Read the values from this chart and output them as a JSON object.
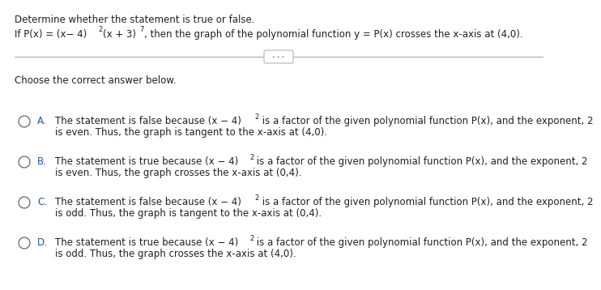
{
  "title_line1": "Determine whether the statement is true or false.",
  "formula_prefix": "If P(x) = (x− 4)",
  "formula_exp1": "2",
  "formula_mid": "(x + 3)",
  "formula_exp2": "7",
  "formula_suffix": ", then the graph of the polynomial function y = P(x) crosses the x-axis at (4,0).",
  "choose_text": "Choose the correct answer below.",
  "options": [
    {
      "letter": "A.",
      "line1_prefix": "The statement is false because (x − 4)",
      "line1_exp": "2",
      "line1_suffix": " is a factor of the given polynomial function P(x), and the exponent, 2",
      "line2": "is even. Thus, the graph is tangent to the x-axis at (4,0)."
    },
    {
      "letter": "B.",
      "line1_prefix": "The statement is true because (x − 4)",
      "line1_exp": "2",
      "line1_suffix": " is a factor of the given polynomial function P(x), and the exponent, 2",
      "line2": "is even. Thus, the graph crosses the x-axis at (0,4)."
    },
    {
      "letter": "C.",
      "line1_prefix": "The statement is false because (x − 4)",
      "line1_exp": "2",
      "line1_suffix": " is a factor of the given polynomial function P(x), and the exponent, 2",
      "line2": "is odd. Thus, the graph is tangent to the x-axis at (0,4)."
    },
    {
      "letter": "D.",
      "line1_prefix": "The statement is true because (x − 4)",
      "line1_exp": "2",
      "line1_suffix": " is a factor of the given polynomial function P(x), and the exponent, 2",
      "line2": "is odd. Thus, the graph crosses the x-axis at (4,0)."
    }
  ],
  "bg_color": "#ffffff",
  "text_color": "#231f20",
  "blue_color": "#2155a3",
  "circle_color": "#666666",
  "math_color": "#cc0000",
  "separator_color": "#aaaaaa",
  "fs_main": 8.5,
  "fs_small": 6.0,
  "fs_label": 8.5
}
